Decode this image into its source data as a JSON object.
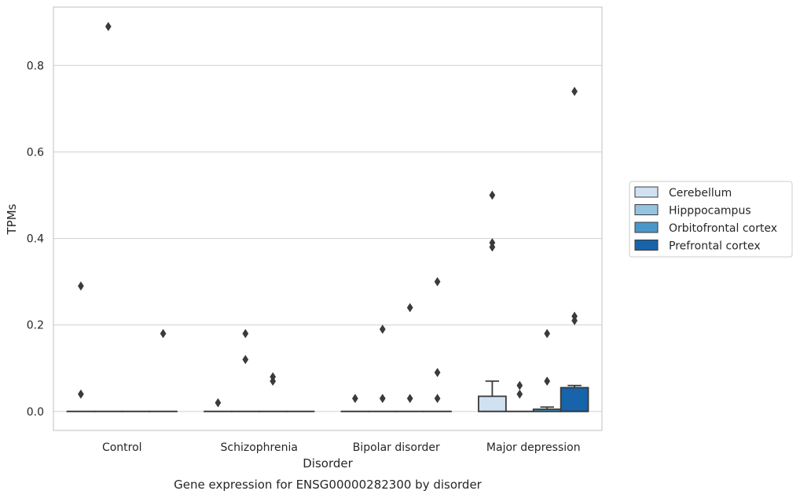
{
  "chart_data": {
    "type": "box",
    "title": "Gene expression for ENSG00000282300 by disorder",
    "xlabel": "Disorder",
    "ylabel": "TPMs",
    "categories": [
      "Control",
      "Schizophrenia",
      "Bipolar disorder",
      "Major depression"
    ],
    "ylim": [
      -0.044,
      0.935
    ],
    "yticks": [
      0.0,
      0.2,
      0.4,
      0.6,
      0.8
    ],
    "ytick_labels": [
      "0.0",
      "0.2",
      "0.4",
      "0.6",
      "0.8"
    ],
    "grid": true,
    "legend_position": "right",
    "series": [
      {
        "name": "Cerebellum",
        "color": "#d0e1f2",
        "boxes": [
          {
            "q1": 0,
            "median": 0,
            "q3": 0,
            "whisker_low": 0,
            "whisker_high": 0,
            "outliers": [
              0.29,
              0.04
            ]
          },
          {
            "q1": 0,
            "median": 0,
            "q3": 0,
            "whisker_low": 0,
            "whisker_high": 0,
            "outliers": [
              0.02
            ]
          },
          {
            "q1": 0,
            "median": 0,
            "q3": 0,
            "whisker_low": 0,
            "whisker_high": 0,
            "outliers": [
              0.03
            ]
          },
          {
            "q1": 0,
            "median": 0,
            "q3": 0.035,
            "whisker_low": 0,
            "whisker_high": 0.07,
            "outliers": [
              0.5,
              0.39,
              0.38
            ]
          }
        ]
      },
      {
        "name": "Hipppocampus",
        "color": "#94c4df",
        "boxes": [
          {
            "q1": 0,
            "median": 0,
            "q3": 0,
            "whisker_low": 0,
            "whisker_high": 0,
            "outliers": [
              0.89
            ]
          },
          {
            "q1": 0,
            "median": 0,
            "q3": 0,
            "whisker_low": 0,
            "whisker_high": 0,
            "outliers": [
              0.12,
              0.18
            ]
          },
          {
            "q1": 0,
            "median": 0,
            "q3": 0,
            "whisker_low": 0,
            "whisker_high": 0,
            "outliers": [
              0.19,
              0.03
            ]
          },
          {
            "q1": 0,
            "median": 0,
            "q3": 0,
            "whisker_low": 0,
            "whisker_high": 0,
            "outliers": [
              0.06,
              0.04
            ]
          }
        ]
      },
      {
        "name": "Orbitofrontal cortex",
        "color": "#4a98c9",
        "boxes": [
          {
            "q1": 0,
            "median": 0,
            "q3": 0,
            "whisker_low": 0,
            "whisker_high": 0,
            "outliers": []
          },
          {
            "q1": 0,
            "median": 0,
            "q3": 0,
            "whisker_low": 0,
            "whisker_high": 0,
            "outliers": [
              0.08,
              0.07
            ]
          },
          {
            "q1": 0,
            "median": 0,
            "q3": 0,
            "whisker_low": 0,
            "whisker_high": 0,
            "outliers": [
              0.24,
              0.03
            ]
          },
          {
            "q1": 0,
            "median": 0,
            "q3": 0.005,
            "whisker_low": 0,
            "whisker_high": 0.01,
            "outliers": [
              0.18,
              0.07
            ]
          }
        ]
      },
      {
        "name": "Prefrontal cortex",
        "color": "#1764ab",
        "boxes": [
          {
            "q1": 0,
            "median": 0,
            "q3": 0,
            "whisker_low": 0,
            "whisker_high": 0,
            "outliers": [
              0.18
            ]
          },
          {
            "q1": 0,
            "median": 0,
            "q3": 0,
            "whisker_low": 0,
            "whisker_high": 0,
            "outliers": []
          },
          {
            "q1": 0,
            "median": 0,
            "q3": 0,
            "whisker_low": 0,
            "whisker_high": 0,
            "outliers": [
              0.03,
              0.3,
              0.09
            ]
          },
          {
            "q1": 0,
            "median": 0,
            "q3": 0.055,
            "whisker_low": 0,
            "whisker_high": 0.06,
            "outliers": [
              0.74,
              0.22,
              0.21
            ]
          }
        ]
      }
    ]
  }
}
